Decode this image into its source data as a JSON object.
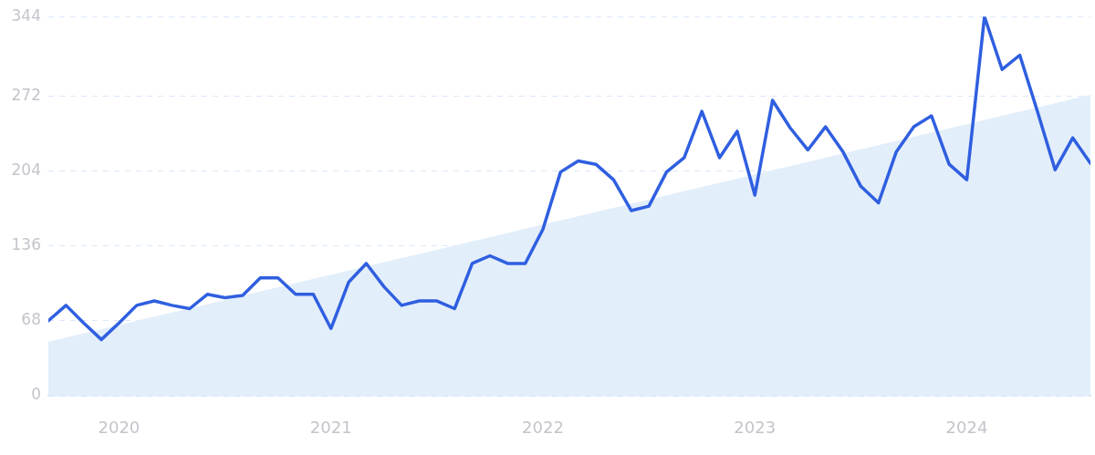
{
  "chart_data": {
    "type": "line",
    "x": [
      "2019-09",
      "2019-10",
      "2019-11",
      "2019-12",
      "2020-01",
      "2020-02",
      "2020-03",
      "2020-04",
      "2020-05",
      "2020-06",
      "2020-07",
      "2020-08",
      "2020-09",
      "2020-10",
      "2020-11",
      "2020-12",
      "2021-01",
      "2021-02",
      "2021-03",
      "2021-04",
      "2021-05",
      "2021-06",
      "2021-07",
      "2021-08",
      "2021-09",
      "2021-10",
      "2021-11",
      "2021-12",
      "2022-01",
      "2022-02",
      "2022-03",
      "2022-04",
      "2022-05",
      "2022-06",
      "2022-07",
      "2022-08",
      "2022-09",
      "2022-10",
      "2022-11",
      "2022-12",
      "2023-01",
      "2023-02",
      "2023-03",
      "2023-04",
      "2023-05",
      "2023-06",
      "2023-07",
      "2023-08",
      "2023-09",
      "2023-10",
      "2023-11",
      "2023-12",
      "2024-01",
      "2024-02",
      "2024-03",
      "2024-04",
      "2024-05",
      "2024-06",
      "2024-07",
      "2024-08"
    ],
    "series": [
      {
        "type": "area",
        "color": "#e3eefb",
        "x": [
          "2019-09",
          "2024-08"
        ],
        "values": [
          49,
          273
        ]
      },
      {
        "color": "#2f5fe0",
        "values": [
          68,
          82,
          66,
          51,
          66,
          82,
          86,
          82,
          79,
          92,
          89,
          91,
          107,
          107,
          92,
          92,
          61,
          103,
          120,
          99,
          82,
          86,
          86,
          79,
          120,
          127,
          120,
          120,
          151,
          203,
          213,
          210,
          196,
          168,
          172,
          203,
          216,
          258,
          216,
          240,
          182,
          268,
          243,
          223,
          244,
          221,
          190,
          175,
          221,
          244,
          254,
          210,
          196,
          344,
          296,
          309,
          258,
          205,
          234,
          211
        ]
      }
    ],
    "xlim": [
      "2019-09",
      "2024-08"
    ],
    "xticks": [
      {
        "value": "2020-01",
        "label": "2020"
      },
      {
        "value": "2021-01",
        "label": "2021"
      },
      {
        "value": "2022-01",
        "label": "2022"
      },
      {
        "value": "2023-01",
        "label": "2023"
      },
      {
        "value": "2024-01",
        "label": "2024"
      }
    ],
    "ylim": [
      0,
      344
    ],
    "yticks": [
      0,
      68,
      136,
      204,
      272,
      344
    ],
    "grid": "y",
    "legend": false,
    "marker": "none",
    "line_style": "solid"
  }
}
